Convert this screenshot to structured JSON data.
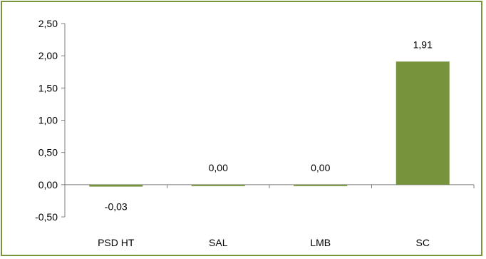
{
  "colors": {
    "bar": "#77933c",
    "frame": "#77933c",
    "axis": "#7f7f7f"
  },
  "chart_data": {
    "type": "bar",
    "categories": [
      "PSD HT",
      "SAL",
      "LMB",
      "SC"
    ],
    "values": [
      -0.03,
      0.0,
      0.0,
      1.91
    ],
    "data_labels": [
      "-0,03",
      "0,00",
      "0,00",
      "1,91"
    ],
    "yticks": [
      2.5,
      2.0,
      1.5,
      1.0,
      0.5,
      0.0,
      -0.5
    ],
    "ytick_labels": [
      "2,50",
      "2,00",
      "1,50",
      "1,00",
      "0,50",
      "0,00",
      "-0,50"
    ],
    "ylim": [
      -0.5,
      2.5
    ],
    "grid": false,
    "title": "",
    "xlabel": "",
    "ylabel": ""
  }
}
